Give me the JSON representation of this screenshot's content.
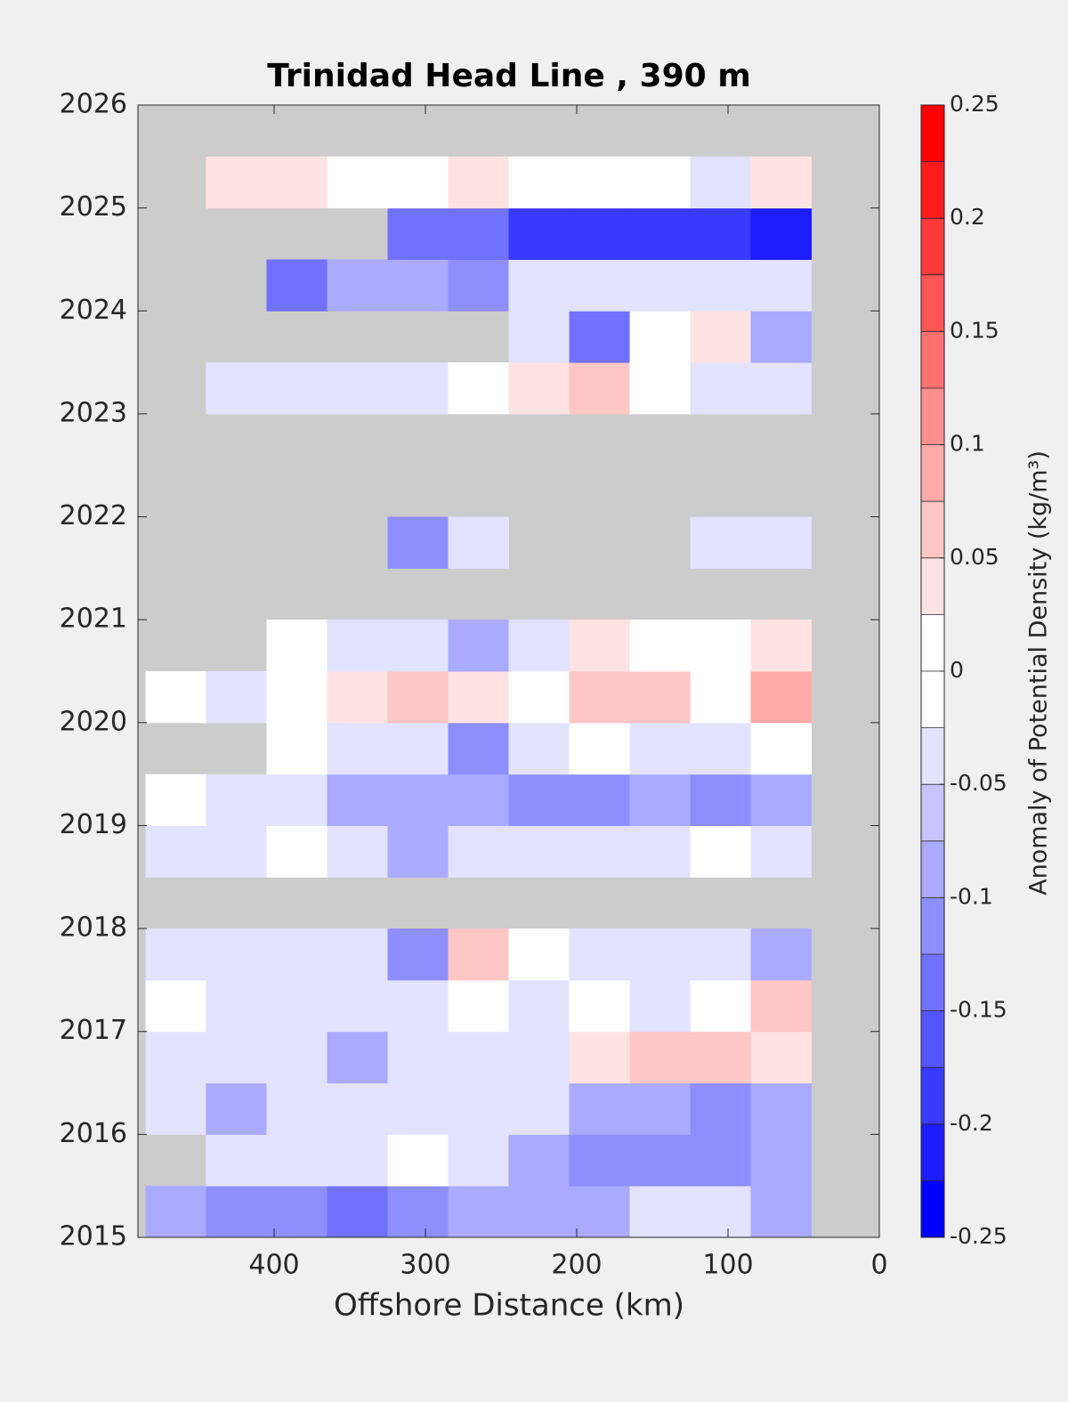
{
  "chart_data": {
    "type": "contour",
    "title": "Trinidad Head Line , 390 m",
    "x_label": "Offshore Distance (km)",
    "colorbar_label": "Anomaly of Potential Density (kg/m³)",
    "xlim": [
      490,
      0
    ],
    "xticks": [
      400,
      300,
      200,
      100,
      0
    ],
    "ylim": [
      2015,
      2026
    ],
    "yticks": [
      2015,
      2016,
      2017,
      2018,
      2019,
      2020,
      2021,
      2022,
      2023,
      2024,
      2025,
      2026
    ],
    "clim": [
      -0.25,
      0.25
    ],
    "cticks": [
      -0.25,
      -0.2,
      -0.15,
      -0.1,
      -0.05,
      0,
      0.05,
      0.1,
      0.15,
      0.2,
      0.25
    ],
    "levels": [
      -0.25,
      -0.225,
      -0.2,
      -0.175,
      -0.15,
      -0.125,
      -0.1,
      -0.075,
      -0.05,
      -0.025,
      0,
      0.025,
      0.05,
      0.075,
      0.1,
      0.125,
      0.15,
      0.175,
      0.2,
      0.225,
      0.25
    ],
    "colormap": [
      "#0000ff",
      "#ffffff",
      "#ff0000"
    ],
    "missing_color": "#cccccc",
    "x": [
      465,
      425,
      385,
      345,
      305,
      265,
      225,
      185,
      145,
      105,
      65
    ],
    "y": [
      2015.25,
      2015.75,
      2016.25,
      2016.75,
      2017.25,
      2017.75,
      2018.25,
      2018.75,
      2019.25,
      2019.75,
      2020.25,
      2020.75,
      2021.25,
      2021.75,
      2022.25,
      2022.75,
      2023.25,
      2023.75,
      2024.25,
      2024.75,
      2025.25
    ],
    "z": [
      [
        -0.1,
        -0.12,
        -0.12,
        -0.15,
        -0.12,
        -0.1,
        -0.08,
        -0.08,
        -0.05,
        -0.05,
        -0.08
      ],
      [
        null,
        -0.05,
        -0.05,
        -0.03,
        0,
        -0.05,
        -0.1,
        -0.12,
        -0.12,
        -0.12,
        -0.08
      ],
      [
        -0.05,
        -0.1,
        -0.05,
        -0.03,
        -0.05,
        -0.05,
        -0.05,
        -0.08,
        -0.1,
        -0.12,
        -0.08
      ],
      [
        -0.03,
        -0.05,
        -0.05,
        -0.08,
        -0.05,
        -0.03,
        -0.03,
        0.03,
        0.05,
        0.05,
        0.03
      ],
      [
        0,
        -0.03,
        -0.05,
        -0.05,
        -0.03,
        0,
        -0.03,
        0,
        -0.03,
        0,
        0.05
      ],
      [
        -0.05,
        -0.05,
        -0.03,
        -0.03,
        -0.12,
        0.05,
        0,
        -0.03,
        -0.03,
        -0.05,
        -0.08
      ],
      [
        null,
        null,
        null,
        null,
        null,
        null,
        null,
        null,
        null,
        null,
        null
      ],
      [
        -0.05,
        -0.03,
        0,
        -0.05,
        -0.08,
        -0.03,
        -0.05,
        -0.05,
        -0.03,
        0,
        -0.05
      ],
      [
        0,
        -0.05,
        -0.05,
        -0.08,
        -0.08,
        -0.1,
        -0.12,
        -0.12,
        -0.1,
        -0.12,
        -0.08
      ],
      [
        null,
        null,
        0,
        -0.03,
        -0.05,
        -0.12,
        -0.03,
        0,
        -0.03,
        -0.03,
        0
      ],
      [
        0,
        -0.03,
        0,
        0.03,
        0.05,
        0.03,
        0,
        0.05,
        0.05,
        0,
        0.08
      ],
      [
        null,
        null,
        0,
        -0.03,
        -0.05,
        -0.1,
        -0.03,
        0.03,
        0,
        0,
        0.03
      ],
      [
        null,
        null,
        null,
        null,
        null,
        null,
        null,
        null,
        null,
        null,
        null
      ],
      [
        null,
        null,
        null,
        null,
        -0.12,
        -0.05,
        null,
        null,
        null,
        -0.03,
        -0.05
      ],
      [
        null,
        null,
        null,
        null,
        null,
        null,
        null,
        null,
        null,
        null,
        null
      ],
      [
        null,
        null,
        null,
        null,
        null,
        null,
        null,
        null,
        null,
        null,
        null
      ],
      [
        null,
        -0.05,
        -0.03,
        -0.03,
        -0.03,
        0,
        0.03,
        0.05,
        0,
        -0.03,
        -0.05
      ],
      [
        null,
        null,
        null,
        null,
        null,
        null,
        -0.03,
        -0.15,
        0,
        0.03,
        -0.1
      ],
      [
        null,
        null,
        -0.15,
        -0.1,
        -0.08,
        -0.12,
        -0.05,
        -0.03,
        -0.05,
        -0.03,
        -0.05
      ],
      [
        null,
        null,
        null,
        null,
        -0.15,
        -0.15,
        -0.18,
        -0.2,
        -0.2,
        -0.2,
        -0.22
      ],
      [
        null,
        0.03,
        0.03,
        0,
        0,
        0.03,
        0,
        0,
        0,
        -0.03,
        0.03
      ]
    ]
  }
}
